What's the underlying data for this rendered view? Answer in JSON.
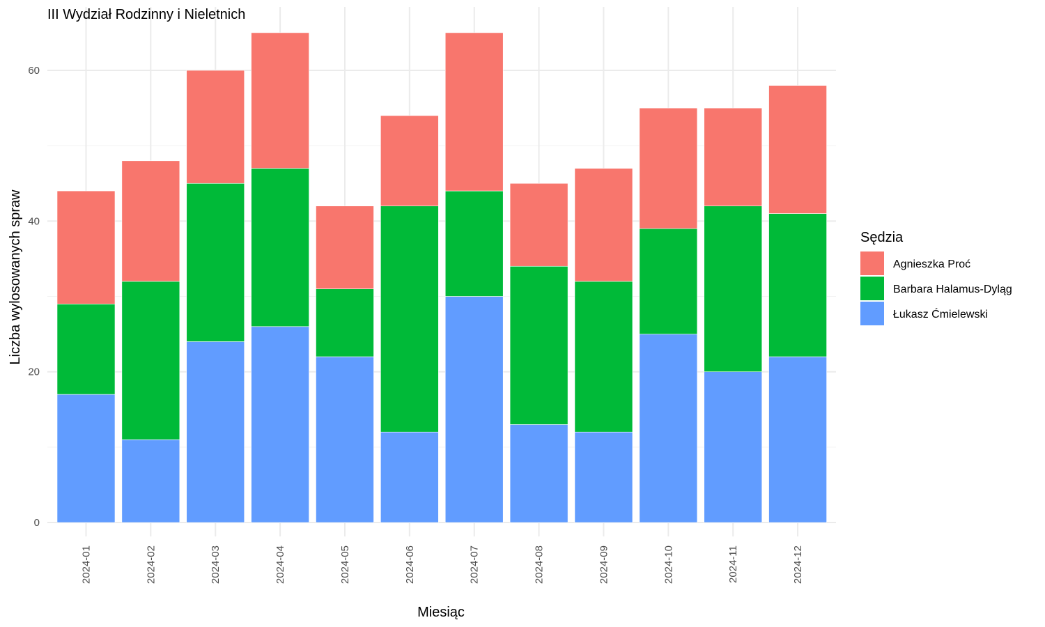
{
  "chart_data": {
    "type": "bar",
    "stacked": true,
    "title": "III Wydział Rodzinny i Nieletnich",
    "xlabel": "Miesiąc",
    "ylabel": "Liczba wylosowanych spraw",
    "ylim": [
      0,
      65
    ],
    "yticks": [
      0,
      20,
      40,
      60
    ],
    "grid": true,
    "legend_title": "Sędzia",
    "legend_position": "right",
    "categories": [
      "2024-01",
      "2024-02",
      "2024-03",
      "2024-04",
      "2024-05",
      "2024-06",
      "2024-07",
      "2024-08",
      "2024-09",
      "2024-10",
      "2024-11",
      "2024-12"
    ],
    "series": [
      {
        "name": "Łukasz Ćmielewski",
        "color": "#619CFF",
        "values": [
          17,
          11,
          24,
          26,
          22,
          12,
          30,
          13,
          12,
          25,
          20,
          22
        ]
      },
      {
        "name": "Barbara Halamus-Dyląg",
        "color": "#00BA38",
        "values": [
          12,
          21,
          21,
          21,
          9,
          30,
          14,
          21,
          20,
          14,
          22,
          19
        ]
      },
      {
        "name": "Agnieszka Proć",
        "color": "#F8766D",
        "values": [
          15,
          16,
          15,
          18,
          11,
          12,
          21,
          11,
          15,
          16,
          13,
          17
        ]
      }
    ],
    "legend_order": [
      "Agnieszka Proć",
      "Barbara Halamus-Dyląg",
      "Łukasz Ćmielewski"
    ]
  }
}
